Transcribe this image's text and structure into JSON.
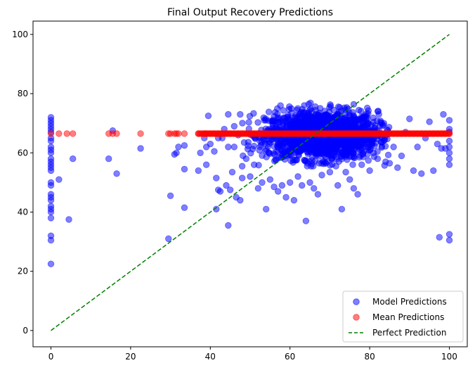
{
  "chart_data": {
    "type": "scatter",
    "title": "Final Output Recovery Predictions",
    "xlabel": "",
    "ylabel": "",
    "xlim": [
      -4.5,
      104.5
    ],
    "ylim": [
      -5.5,
      104.5
    ],
    "xticks": [
      0,
      20,
      40,
      60,
      80,
      100
    ],
    "yticks": [
      0,
      20,
      40,
      60,
      80,
      100
    ],
    "grid": false,
    "legend_position": "bottom-right",
    "series": [
      {
        "name": "Model Predictions",
        "kind": "scatter",
        "color": "#0000ff",
        "alpha": 0.5,
        "cluster": {
          "x_mean": 68,
          "x_sd": 7,
          "y_mean": 66,
          "y_sd": 4,
          "n": 1800
        },
        "points": [
          [
            0,
            72
          ],
          [
            0,
            71
          ],
          [
            0,
            70
          ],
          [
            0,
            69
          ],
          [
            0,
            68
          ],
          [
            0,
            67
          ],
          [
            0,
            65
          ],
          [
            0,
            64
          ],
          [
            0,
            62
          ],
          [
            0,
            61
          ],
          [
            0,
            60
          ],
          [
            0,
            58
          ],
          [
            0,
            57
          ],
          [
            0,
            56
          ],
          [
            0,
            55
          ],
          [
            0,
            54
          ],
          [
            0,
            50
          ],
          [
            0,
            49
          ],
          [
            0,
            46
          ],
          [
            0,
            45
          ],
          [
            0,
            44
          ],
          [
            0,
            42
          ],
          [
            0,
            41
          ],
          [
            0,
            40
          ],
          [
            0,
            38
          ],
          [
            0,
            32
          ],
          [
            0,
            30.5
          ],
          [
            0,
            22.5
          ],
          [
            2,
            51
          ],
          [
            4.5,
            37.5
          ],
          [
            5.5,
            58
          ],
          [
            14.5,
            58
          ],
          [
            15.5,
            67.5
          ],
          [
            16.5,
            53
          ],
          [
            22.5,
            61.5
          ],
          [
            29.5,
            31
          ],
          [
            30,
            45.5
          ],
          [
            31,
            59.5
          ],
          [
            31.5,
            60
          ],
          [
            32,
            62
          ],
          [
            33.5,
            41.5
          ],
          [
            33.5,
            54.5
          ],
          [
            33.5,
            62.5
          ],
          [
            37,
            54
          ],
          [
            37.5,
            60
          ],
          [
            38.5,
            65
          ],
          [
            39,
            56
          ],
          [
            39,
            62
          ],
          [
            39.5,
            72.5
          ],
          [
            40,
            63
          ],
          [
            41,
            60.5
          ],
          [
            41.5,
            41
          ],
          [
            41.5,
            51.5
          ],
          [
            42,
            47.5
          ],
          [
            42,
            65
          ],
          [
            42.5,
            47
          ],
          [
            43,
            65
          ],
          [
            43.5,
            68
          ],
          [
            44,
            49
          ],
          [
            44.5,
            73
          ],
          [
            44.5,
            35.5
          ],
          [
            44.5,
            62
          ],
          [
            45,
            47.5
          ],
          [
            45.5,
            53.5
          ],
          [
            46,
            62
          ],
          [
            46,
            69
          ],
          [
            46.5,
            45
          ],
          [
            47,
            66
          ],
          [
            47.5,
            44
          ],
          [
            47.5,
            73
          ],
          [
            48,
            51.5
          ],
          [
            48,
            55.5
          ],
          [
            48.5,
            63.5
          ],
          [
            49,
            58
          ],
          [
            50,
            52
          ],
          [
            51,
            56
          ],
          [
            52,
            48
          ],
          [
            53,
            50
          ],
          [
            54,
            41
          ],
          [
            55,
            51
          ],
          [
            56,
            48.5
          ],
          [
            57,
            47
          ],
          [
            58,
            49
          ],
          [
            59,
            45
          ],
          [
            60,
            50
          ],
          [
            61,
            44
          ],
          [
            62,
            52
          ],
          [
            63,
            49
          ],
          [
            64,
            37
          ],
          [
            65,
            50
          ],
          [
            66,
            48
          ],
          [
            67,
            46
          ],
          [
            68,
            52.5
          ],
          [
            70,
            53.5
          ],
          [
            72,
            49
          ],
          [
            73,
            41
          ],
          [
            74,
            53.5
          ],
          [
            75,
            51
          ],
          [
            76,
            48
          ],
          [
            77,
            46
          ],
          [
            78,
            56
          ],
          [
            79,
            64
          ],
          [
            80,
            54
          ],
          [
            81,
            60
          ],
          [
            82,
            58
          ],
          [
            83,
            70
          ],
          [
            84,
            57
          ],
          [
            85,
            56.5
          ],
          [
            86,
            62
          ],
          [
            87,
            55
          ],
          [
            88,
            59
          ],
          [
            89,
            67
          ],
          [
            90,
            71.5
          ],
          [
            91,
            54
          ],
          [
            92,
            62
          ],
          [
            93,
            53
          ],
          [
            94,
            65
          ],
          [
            95,
            70.5
          ],
          [
            96,
            54
          ],
          [
            97,
            63
          ],
          [
            97.5,
            31.5
          ],
          [
            98,
            61.5
          ],
          [
            98.5,
            73
          ],
          [
            99,
            61.5
          ],
          [
            100,
            71
          ],
          [
            100,
            68
          ],
          [
            100,
            67
          ],
          [
            100,
            64
          ],
          [
            100,
            62
          ],
          [
            100,
            60
          ],
          [
            100,
            58
          ],
          [
            100,
            56
          ],
          [
            100,
            32.5
          ],
          [
            100,
            30.5
          ]
        ]
      },
      {
        "name": "Mean Predictions",
        "kind": "scatter",
        "color": "#ff0000",
        "alpha": 0.5,
        "y_constant": 66.5,
        "x": [
          0,
          2,
          4,
          5.5,
          14.5,
          15.5,
          16.5,
          22.5,
          29.5,
          30,
          31,
          31.5,
          32,
          33.5,
          37,
          38.5,
          39,
          40,
          41,
          42,
          43,
          44,
          45,
          46,
          47,
          48,
          49,
          50,
          51,
          52,
          53,
          54,
          55,
          56,
          57,
          58,
          59,
          60,
          61,
          62,
          63,
          64,
          65,
          66,
          67,
          68,
          69,
          70,
          71,
          72,
          73,
          74,
          75,
          76,
          77,
          78,
          79,
          80,
          81,
          82,
          83,
          84,
          85,
          86,
          87,
          88,
          89,
          90,
          91,
          92,
          93,
          94,
          95,
          96,
          97,
          98,
          99,
          100
        ]
      },
      {
        "name": "Perfect Prediction",
        "kind": "line",
        "style": "dashed",
        "color": "#008000",
        "x": [
          0,
          100
        ],
        "y": [
          0,
          100
        ]
      }
    ]
  }
}
